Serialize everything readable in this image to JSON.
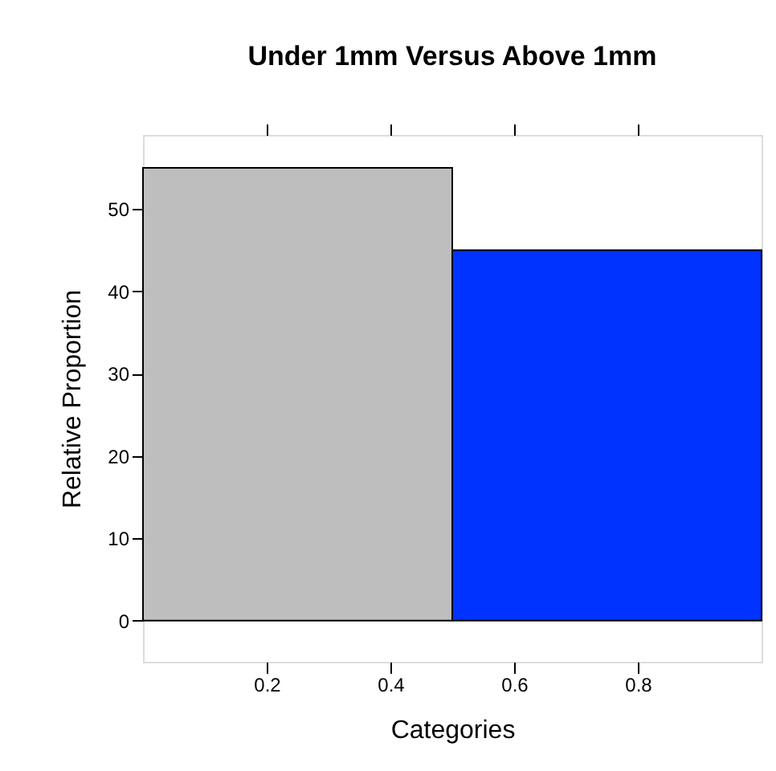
{
  "chart_data": {
    "type": "histogram",
    "title": "Under 1mm Versus Above 1mm",
    "xlabel": "Categories",
    "ylabel": "Relative Proportion",
    "bins": [
      0,
      0.5,
      1
    ],
    "values": [
      55,
      45
    ],
    "colors": [
      "#bebebe",
      "#0033ff"
    ],
    "xlim": [
      0,
      1
    ],
    "ylim": [
      -5,
      59
    ],
    "xticks": [
      0.2,
      0.4,
      0.6,
      0.8
    ],
    "yticks": [
      0,
      10,
      20,
      30,
      40,
      50
    ],
    "grid": false
  }
}
